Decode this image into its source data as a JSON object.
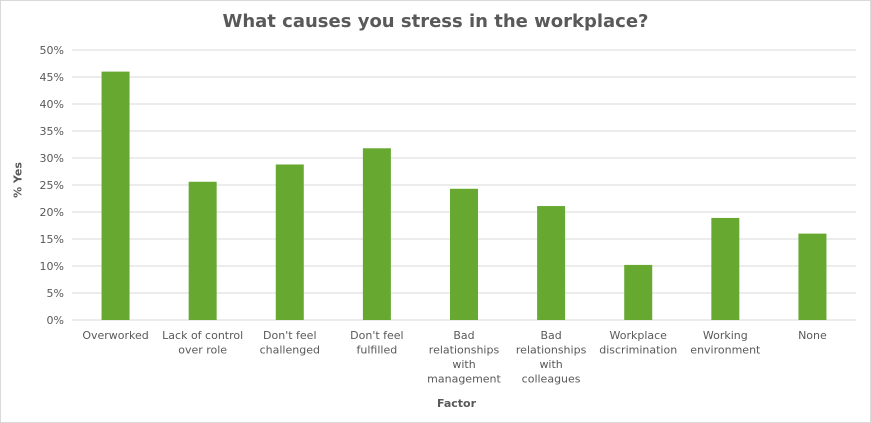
{
  "chart_data": {
    "type": "bar",
    "title": "What causes you stress in the workplace?",
    "xlabel": "Factor",
    "ylabel": "% Yes",
    "categories": [
      "Overworked",
      "Lack of control over role",
      "Don't feel challenged",
      "Don't feel fulfilled",
      "Bad relationships with management",
      "Bad relationships with colleagues",
      "Workplace discrimination",
      "Working environment",
      "None"
    ],
    "category_lines": [
      [
        "Overworked"
      ],
      [
        "Lack of control",
        "over role"
      ],
      [
        "Don't feel",
        "challenged"
      ],
      [
        "Don't feel",
        "fulfilled"
      ],
      [
        "Bad",
        "relationships",
        "with",
        "management"
      ],
      [
        "Bad",
        "relationships",
        "with",
        "colleagues"
      ],
      [
        "Workplace",
        "discrimination"
      ],
      [
        "Working",
        "environment"
      ],
      [
        "None"
      ]
    ],
    "values": [
      46,
      25.6,
      28.8,
      31.8,
      24.3,
      21.1,
      10.2,
      18.9,
      16
    ],
    "ylim": [
      0,
      50
    ],
    "yticks": [
      "0%",
      "5%",
      "10%",
      "15%",
      "20%",
      "25%",
      "30%",
      "35%",
      "40%",
      "45%",
      "50%"
    ],
    "grid": true,
    "legend": "none",
    "bar_color": "#66a830",
    "grid_color": "#d9d9d9"
  }
}
